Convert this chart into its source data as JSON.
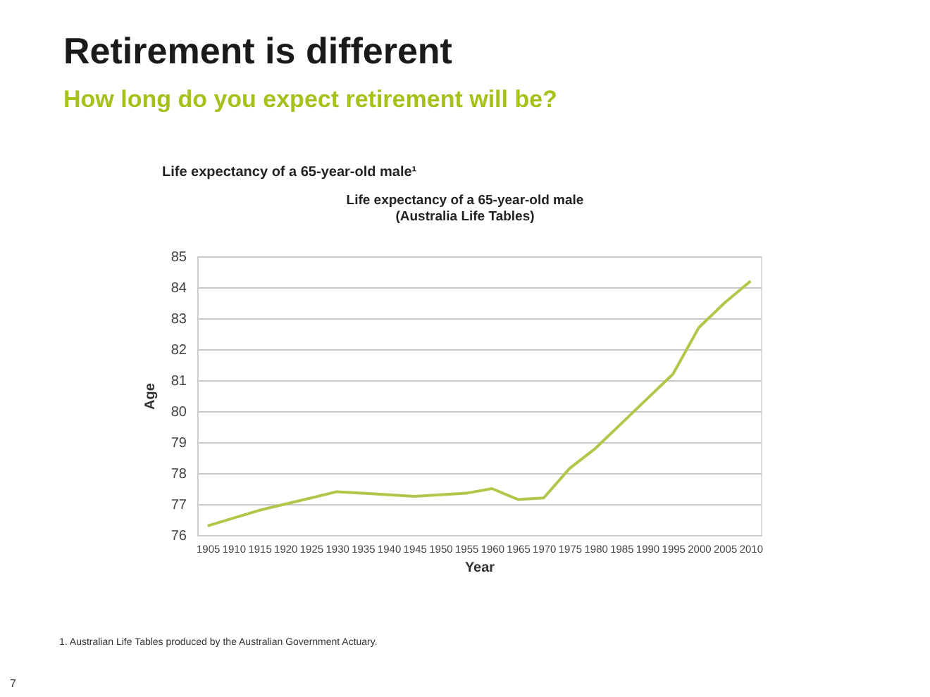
{
  "chart_data": {
    "type": "line",
    "title": "Retirement is different",
    "subtitle": "How long do you expect retirement will be?",
    "xlabel": "Year",
    "ylabel": "Age",
    "categories": [
      "1905",
      "1910",
      "1915",
      "1920",
      "1925",
      "1930",
      "1935",
      "1940",
      "1945",
      "1950",
      "1955",
      "1960",
      "1965",
      "1970",
      "1975",
      "1980",
      "1985",
      "1990",
      "1995",
      "2000",
      "2005",
      "2010"
    ],
    "series": [
      {
        "color": "#b3c64a",
        "values": [
          76.3,
          76.55,
          76.8,
          77.0,
          77.2,
          77.4,
          77.35,
          77.3,
          77.25,
          77.3,
          77.35,
          77.5,
          77.15,
          77.2,
          78.15,
          78.8,
          79.6,
          80.4,
          81.2,
          82.7,
          83.5,
          84.2
        ]
      }
    ],
    "ylim": [
      76,
      85
    ],
    "yticks": [
      76,
      77,
      78,
      79,
      80,
      81,
      82,
      83,
      84,
      85
    ],
    "grid": "y",
    "marker": "none",
    "line_style": "solid",
    "annotations": [
      "Life expectancy of a 65-year-old male¹",
      "Life expectancy of a 65-year-old male\n(Australia Life Tables)",
      "1.  Australian Life Tables produced by the Australian Government Actuary.",
      "7"
    ]
  }
}
